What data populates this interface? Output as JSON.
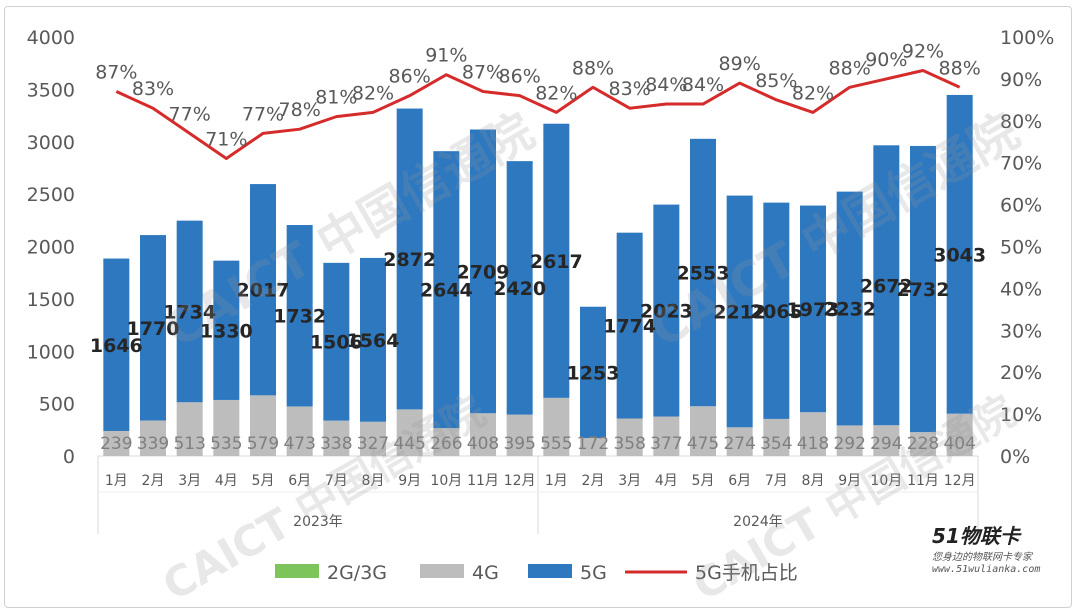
{
  "watermark_text": "CAICT 中国信通院",
  "logo": {
    "main": "51物联卡",
    "sub": "您身边的物联网卡专家",
    "url": "www.51wulianka.com"
  },
  "colors": {
    "g23": "#7dc55a",
    "g4": "#bdbdbd",
    "g5": "#2e78c0",
    "ratio": "#d62b2b"
  },
  "chart_data": {
    "type": "bar",
    "stacked": true,
    "categories": [
      "1月",
      "2月",
      "3月",
      "4月",
      "5月",
      "6月",
      "7月",
      "8月",
      "9月",
      "10月",
      "11月",
      "12月",
      "1月",
      "2月",
      "3月",
      "4月",
      "5月",
      "6月",
      "7月",
      "8月",
      "9月",
      "10月",
      "11月",
      "12月"
    ],
    "groups": [
      {
        "label": "2023年",
        "count": 12
      },
      {
        "label": "2024年",
        "count": 12
      }
    ],
    "series": [
      {
        "name": "2G/3G",
        "color": "#7dc55a",
        "values": [
          0,
          0,
          0,
          0,
          0,
          0,
          0,
          0,
          0,
          0,
          0,
          0,
          0,
          0,
          0,
          0,
          0,
          0,
          0,
          0,
          0,
          0,
          0,
          0
        ]
      },
      {
        "name": "4G",
        "color": "#bdbdbd",
        "values": [
          239,
          339,
          513,
          535,
          579,
          473,
          338,
          327,
          445,
          266,
          408,
          395,
          555,
          172,
          358,
          377,
          475,
          274,
          354,
          418,
          292,
          294,
          228,
          404
        ]
      },
      {
        "name": "5G",
        "color": "#2e78c0",
        "values": [
          1646,
          1770,
          1734,
          1330,
          2017,
          1732,
          1506,
          1564,
          2872,
          2644,
          2709,
          2420,
          2617,
          1253,
          1774,
          2023,
          2553,
          2212,
          2065,
          1973,
          2232,
          2672,
          2732,
          3043
        ]
      },
      {
        "name": "5G手机占比",
        "type": "line",
        "axis": "right",
        "color": "#d62b2b",
        "values": [
          87,
          83,
          77,
          71,
          77,
          78,
          81,
          82,
          86,
          91,
          87,
          86,
          82,
          88,
          83,
          84,
          84,
          89,
          85,
          82,
          88,
          90,
          92,
          88
        ]
      }
    ],
    "yticks_left": [
      "0",
      "500",
      "1000",
      "1500",
      "2000",
      "2500",
      "3000",
      "3500",
      "4000"
    ],
    "ylim_left": [
      0,
      4000
    ],
    "yticks_right": [
      "0%",
      "10%",
      "20%",
      "30%",
      "40%",
      "50%",
      "60%",
      "70%",
      "80%",
      "90%",
      "100%"
    ],
    "ylim_right": [
      0,
      100
    ],
    "legend": [
      "2G/3G",
      "4G",
      "5G",
      "5G手机占比"
    ],
    "legend_position": "bottom",
    "grid": false
  }
}
